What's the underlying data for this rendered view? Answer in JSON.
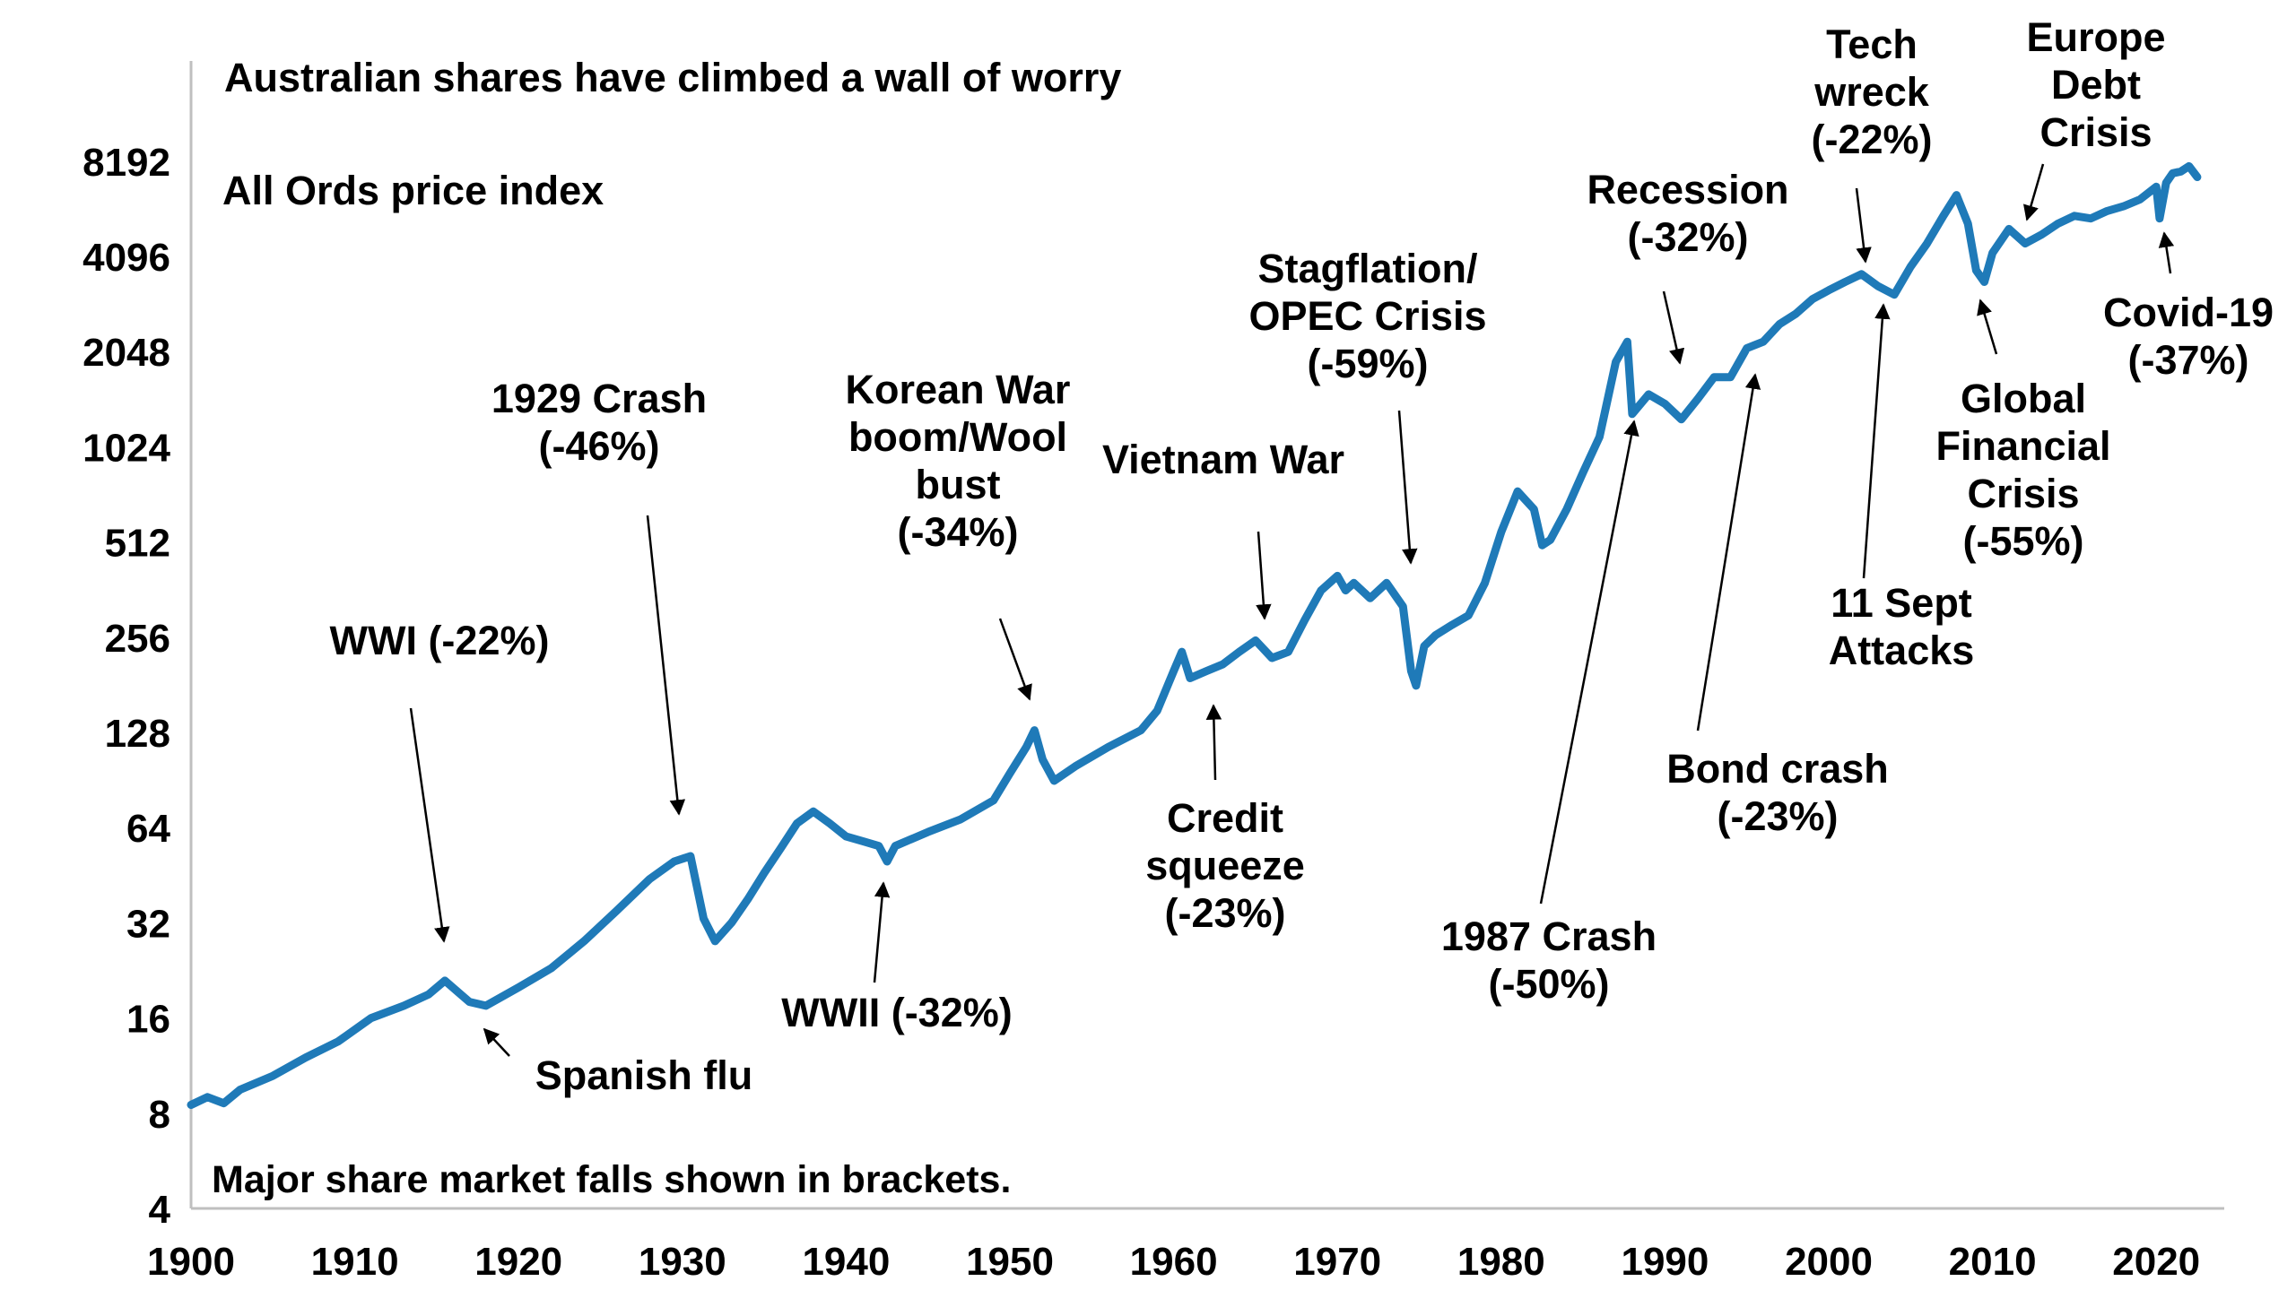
{
  "chart_data": {
    "type": "line",
    "title": "Australian shares have climbed a wall of worry",
    "subtitle": "All Ords price index",
    "footnote": "Major share market falls shown in brackets.",
    "yscale": "log2",
    "xlim": [
      1900,
      2023
    ],
    "ylim": [
      4,
      11585
    ],
    "x_ticks": [
      "1900",
      "1910",
      "1920",
      "1930",
      "1940",
      "1950",
      "1960",
      "1970",
      "1980",
      "1990",
      "2000",
      "2010",
      "2020"
    ],
    "y_ticks": [
      "4",
      "8",
      "16",
      "32",
      "64",
      "128",
      "256",
      "512",
      "1024",
      "2048",
      "4096",
      "8192"
    ],
    "line_color": "#1f7ab8",
    "series": [
      {
        "x": [
          1900,
          1901,
          1902,
          1903,
          1905,
          1907,
          1909,
          1911,
          1913,
          1914.5,
          1915.5,
          1917,
          1918,
          1920,
          1922,
          1924,
          1926,
          1928,
          1929.5,
          1930.5,
          1931.3,
          1932,
          1933,
          1934,
          1935,
          1936,
          1937,
          1938,
          1939,
          1940,
          1941,
          1942,
          1942.5,
          1943,
          1945,
          1947,
          1949,
          1950,
          1951,
          1951.5,
          1952,
          1952.7,
          1954,
          1956,
          1958,
          1959,
          1960,
          1960.5,
          1961,
          1962,
          1963,
          1964,
          1965,
          1966,
          1967,
          1968,
          1969,
          1970,
          1970.5,
          1971,
          1972,
          1973,
          1974,
          1974.5,
          1974.8,
          1975.3,
          1976,
          1977,
          1978,
          1979,
          1980,
          1981,
          1982,
          1982.5,
          1983,
          1984,
          1985,
          1986,
          1987,
          1987.7,
          1988,
          1989,
          1990,
          1991,
          1992,
          1993,
          1994,
          1995,
          1996,
          1997,
          1998,
          1999,
          2000,
          2001,
          2002,
          2003,
          2004,
          2005,
          2006,
          2007,
          2007.8,
          2008.5,
          2009,
          2009.5,
          2010,
          2011,
          2012,
          2013,
          2014,
          2015,
          2016,
          2017,
          2018,
          2019,
          2020,
          2020.2,
          2020.6,
          2021,
          2021.5,
          2022,
          2022.5
        ],
        "y": [
          8.5,
          9,
          8.6,
          9.5,
          10.5,
          12,
          13.5,
          16,
          17.5,
          19,
          21,
          18,
          17.5,
          20,
          23,
          28,
          35,
          44,
          50,
          52,
          33,
          28,
          32,
          38,
          46,
          55,
          66,
          72,
          66,
          60,
          58,
          56,
          50,
          56,
          62,
          68,
          78,
          95,
          115,
          130,
          105,
          90,
          100,
          115,
          130,
          150,
          200,
          230,
          190,
          200,
          210,
          230,
          250,
          220,
          230,
          290,
          360,
          400,
          360,
          380,
          340,
          380,
          320,
          200,
          180,
          240,
          260,
          280,
          300,
          380,
          550,
          740,
          650,
          500,
          520,
          650,
          850,
          1100,
          1900,
          2200,
          1300,
          1500,
          1400,
          1250,
          1450,
          1700,
          1700,
          2100,
          2200,
          2500,
          2700,
          3000,
          3200,
          3400,
          3600,
          3300,
          3100,
          3800,
          4500,
          5500,
          6400,
          5200,
          3700,
          3400,
          4200,
          5000,
          4500,
          4800,
          5200,
          5500,
          5400,
          5700,
          5900,
          6200,
          6800,
          5400,
          7000,
          7500,
          7600,
          7900,
          7300
        ]
      }
    ],
    "annotations": [
      {
        "lines": [
          "WWI (-22%)"
        ]
      },
      {
        "lines": [
          "Spanish flu"
        ]
      },
      {
        "lines": [
          "1929 Crash",
          "(-46%)"
        ]
      },
      {
        "lines": [
          "WWII (-32%)"
        ]
      },
      {
        "lines": [
          "Korean War",
          "boom/Wool",
          "bust",
          "(-34%)"
        ]
      },
      {
        "lines": [
          "Credit",
          "squeeze",
          "(-23%)"
        ]
      },
      {
        "lines": [
          "Vietnam War"
        ]
      },
      {
        "lines": [
          "Stagflation/",
          "OPEC Crisis",
          "(-59%)"
        ]
      },
      {
        "lines": [
          "1987 Crash",
          "(-50%)"
        ]
      },
      {
        "lines": [
          "Recession",
          "(-32%)"
        ]
      },
      {
        "lines": [
          "Bond crash",
          "(-23%)"
        ]
      },
      {
        "lines": [
          "Tech",
          "wreck",
          "(-22%)"
        ]
      },
      {
        "lines": [
          "11 Sept",
          "Attacks"
        ]
      },
      {
        "lines": [
          "Global",
          "Financial",
          "Crisis",
          "(-55%)"
        ]
      },
      {
        "lines": [
          "Europe",
          "Debt",
          "Crisis"
        ]
      },
      {
        "lines": [
          "Covid-19",
          "(-37%)"
        ]
      }
    ]
  }
}
